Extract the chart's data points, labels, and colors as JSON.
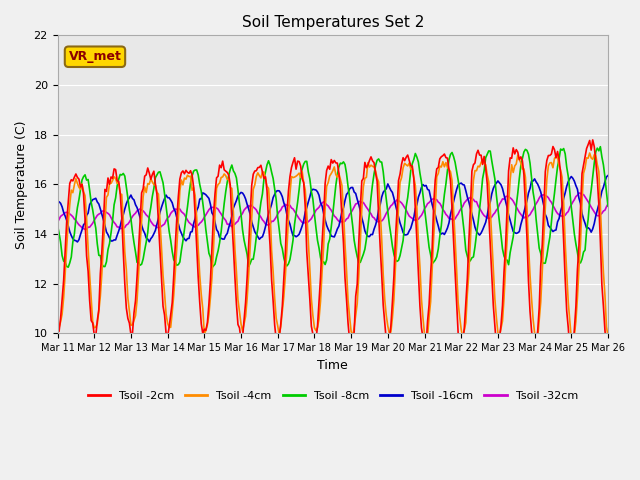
{
  "title": "Soil Temperatures Set 2",
  "xlabel": "Time",
  "ylabel": "Soil Temperature (C)",
  "ylim": [
    10,
    22
  ],
  "xlim": [
    0,
    360
  ],
  "x_tick_labels": [
    "Mar 11",
    "Mar 12",
    "Mar 13",
    "Mar 14",
    "Mar 15",
    "Mar 16",
    "Mar 17",
    "Mar 18",
    "Mar 19",
    "Mar 20",
    "Mar 21",
    "Mar 22",
    "Mar 23",
    "Mar 24",
    "Mar 25",
    "Mar 26"
  ],
  "x_tick_positions": [
    0,
    24,
    48,
    72,
    96,
    120,
    144,
    168,
    192,
    216,
    240,
    264,
    288,
    312,
    336,
    360
  ],
  "y_ticks": [
    10,
    12,
    14,
    16,
    18,
    20,
    22
  ],
  "series": {
    "Tsoil -2cm": {
      "color": "#FF0000",
      "lw": 1.2
    },
    "Tsoil -4cm": {
      "color": "#FF8C00",
      "lw": 1.2
    },
    "Tsoil -8cm": {
      "color": "#00CC00",
      "lw": 1.2
    },
    "Tsoil -16cm": {
      "color": "#0000CC",
      "lw": 1.2
    },
    "Tsoil -32cm": {
      "color": "#CC00CC",
      "lw": 1.2
    }
  },
  "annotation_text": "VR_met",
  "annotation_bg": "#FFD700",
  "annotation_border": "#8B6914",
  "fig_bg": "#F0F0F0",
  "plot_bg": "#E8E8E8"
}
